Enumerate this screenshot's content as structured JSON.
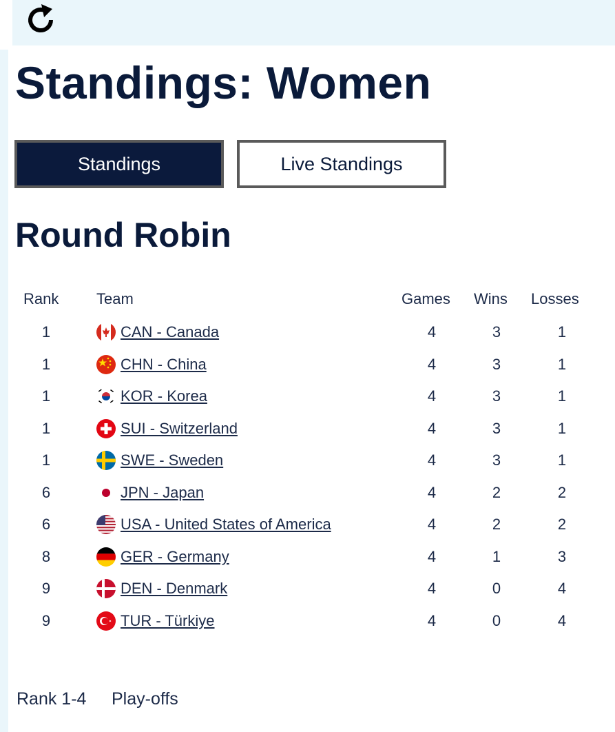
{
  "page": {
    "title": "Standings: Women"
  },
  "tabs": [
    {
      "label": "Standings",
      "active": true
    },
    {
      "label": "Live Standings",
      "active": false
    }
  ],
  "section": {
    "title": "Round Robin"
  },
  "table": {
    "headers": {
      "rank": "Rank",
      "team": "Team",
      "games": "Games",
      "wins": "Wins",
      "losses": "Losses"
    },
    "rows": [
      {
        "rank": "1",
        "team": "CAN - Canada",
        "flag": "canada-flag-icon",
        "games": "4",
        "wins": "3",
        "losses": "1"
      },
      {
        "rank": "1",
        "team": "CHN - China",
        "flag": "china-flag-icon",
        "games": "4",
        "wins": "3",
        "losses": "1"
      },
      {
        "rank": "1",
        "team": "KOR - Korea",
        "flag": "korea-flag-icon",
        "games": "4",
        "wins": "3",
        "losses": "1"
      },
      {
        "rank": "1",
        "team": "SUI - Switzerland",
        "flag": "switzerland-flag-icon",
        "games": "4",
        "wins": "3",
        "losses": "1"
      },
      {
        "rank": "1",
        "team": "SWE - Sweden",
        "flag": "sweden-flag-icon",
        "games": "4",
        "wins": "3",
        "losses": "1"
      },
      {
        "rank": "6",
        "team": "JPN - Japan",
        "flag": "japan-flag-icon",
        "games": "4",
        "wins": "2",
        "losses": "2"
      },
      {
        "rank": "6",
        "team": "USA - United States of America",
        "flag": "usa-flag-icon",
        "games": "4",
        "wins": "2",
        "losses": "2"
      },
      {
        "rank": "8",
        "team": "GER - Germany",
        "flag": "germany-flag-icon",
        "games": "4",
        "wins": "1",
        "losses": "3"
      },
      {
        "rank": "9",
        "team": "DEN - Denmark",
        "flag": "denmark-flag-icon",
        "games": "4",
        "wins": "0",
        "losses": "4"
      },
      {
        "rank": "9",
        "team": "TUR - Türkiye",
        "flag": "turkey-flag-icon",
        "games": "4",
        "wins": "0",
        "losses": "4"
      }
    ]
  },
  "footer": {
    "links": [
      "Rank 1-4",
      "Play-offs"
    ]
  },
  "icons": {
    "refresh": "refresh-icon"
  },
  "colors": {
    "navy": "#0b1a3c",
    "topbar": "#eaf6fb",
    "tab_border": "#5a5a5a"
  }
}
